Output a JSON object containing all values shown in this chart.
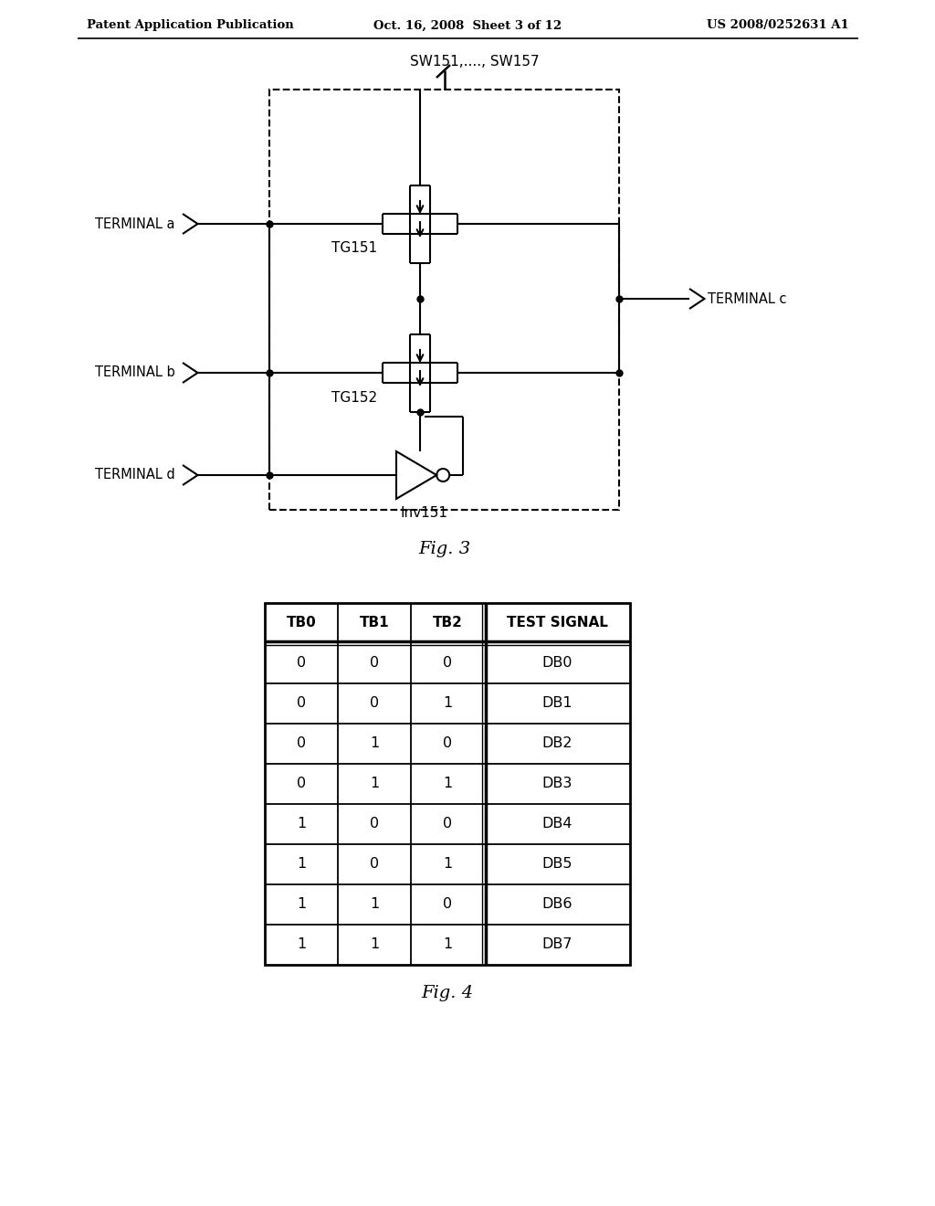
{
  "page_title_left": "Patent Application Publication",
  "page_title_center": "Oct. 16, 2008  Sheet 3 of 12",
  "page_title_right": "US 2008/0252631 A1",
  "fig3_label": "Fig. 3",
  "fig4_label": "Fig. 4",
  "sw_label": "SW151,...., SW157",
  "tg151_label": "TG151",
  "tg152_label": "TG152",
  "inv151_label": "Inv151",
  "terminal_a": "TERMINAL a",
  "terminal_b": "TERMINAL b",
  "terminal_c": "TERMINAL c",
  "terminal_d": "TERMINAL d",
  "table_headers": [
    "TB0",
    "TB1",
    "TB2",
    "TEST SIGNAL"
  ],
  "table_rows": [
    [
      "0",
      "0",
      "0",
      "DB0"
    ],
    [
      "0",
      "0",
      "1",
      "DB1"
    ],
    [
      "0",
      "1",
      "0",
      "DB2"
    ],
    [
      "0",
      "1",
      "1",
      "DB3"
    ],
    [
      "1",
      "0",
      "0",
      "DB4"
    ],
    [
      "1",
      "0",
      "1",
      "DB5"
    ],
    [
      "1",
      "1",
      "0",
      "DB6"
    ],
    [
      "1",
      "1",
      "1",
      "DB7"
    ]
  ],
  "bg_color": "#ffffff",
  "line_color": "#000000"
}
